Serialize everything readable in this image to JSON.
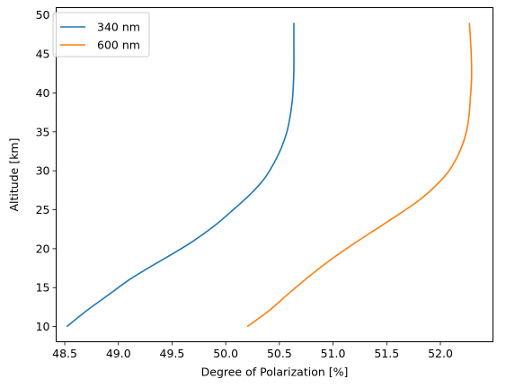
{
  "chart_data": {
    "type": "line",
    "title": "",
    "xlabel": "Degree of Polarization [%]",
    "ylabel": "Altitude [km]",
    "xlim": [
      48.42,
      52.49
    ],
    "ylim": [
      8.05,
      50.95
    ],
    "xticks": [
      48.5,
      49.0,
      49.5,
      50.0,
      50.5,
      51.0,
      51.5,
      52.0
    ],
    "xtick_labels": [
      "48.5",
      "49.0",
      "49.5",
      "50.0",
      "50.5",
      "51.0",
      "51.5",
      "52.0"
    ],
    "yticks": [
      10,
      15,
      20,
      25,
      30,
      35,
      40,
      45,
      50
    ],
    "ytick_labels": [
      "10",
      "15",
      "20",
      "25",
      "30",
      "35",
      "40",
      "45",
      "50"
    ],
    "grid": false,
    "legend_position": "upper-left",
    "series": [
      {
        "name": "340 nm",
        "color": "#1f77b4",
        "x": [
          48.52,
          48.7,
          48.9,
          49.1,
          49.3,
          49.5,
          49.7,
          49.9,
          50.07,
          50.23,
          50.36,
          50.45,
          50.52,
          50.57,
          50.6,
          50.62,
          50.63,
          50.635,
          50.635,
          50.635
        ],
        "y": [
          10,
          12,
          14,
          16,
          17.7,
          19.3,
          21,
          23,
          25,
          27,
          29,
          31,
          33,
          35,
          37,
          39,
          41,
          43,
          46,
          49
        ]
      },
      {
        "name": "600 nm",
        "color": "#ff7f0e",
        "x": [
          50.2,
          50.4,
          50.6,
          50.8,
          51.0,
          51.2,
          51.4,
          51.6,
          51.8,
          51.95,
          52.07,
          52.15,
          52.21,
          52.25,
          52.27,
          52.28,
          52.29,
          52.29,
          52.28,
          52.27
        ],
        "y": [
          10,
          12,
          14.4,
          16.7,
          18.8,
          20.7,
          22.5,
          24.3,
          26.2,
          28,
          29.8,
          31.6,
          33.5,
          35.5,
          37.5,
          39.5,
          41.5,
          44,
          47,
          49
        ]
      }
    ]
  }
}
